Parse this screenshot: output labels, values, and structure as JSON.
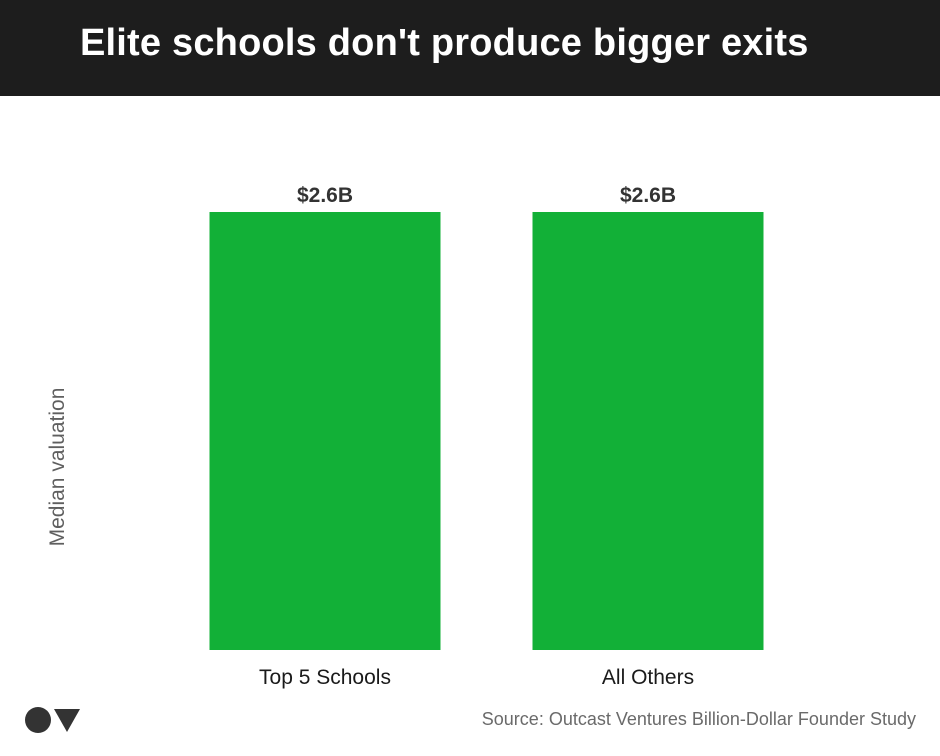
{
  "title": "Elite schools don't produce bigger exits",
  "chart_data": {
    "type": "bar",
    "categories": [
      "Top 5 Schools",
      "All Others"
    ],
    "values": [
      2.6,
      2.6
    ],
    "data_labels": [
      "$2.6B",
      "$2.6B"
    ],
    "ylabel": "Median valuation",
    "xlabel": "",
    "ylim": [
      0,
      2.6
    ],
    "bar_color": "#12b037",
    "grid": false,
    "legend": "none"
  },
  "footer": {
    "logo_icon": "circle-triangle-logo",
    "source": "Source: Outcast Ventures Billion-Dollar Founder Study"
  },
  "colors": {
    "title_bar": "#1d1d1d",
    "bar": "#12b037"
  }
}
